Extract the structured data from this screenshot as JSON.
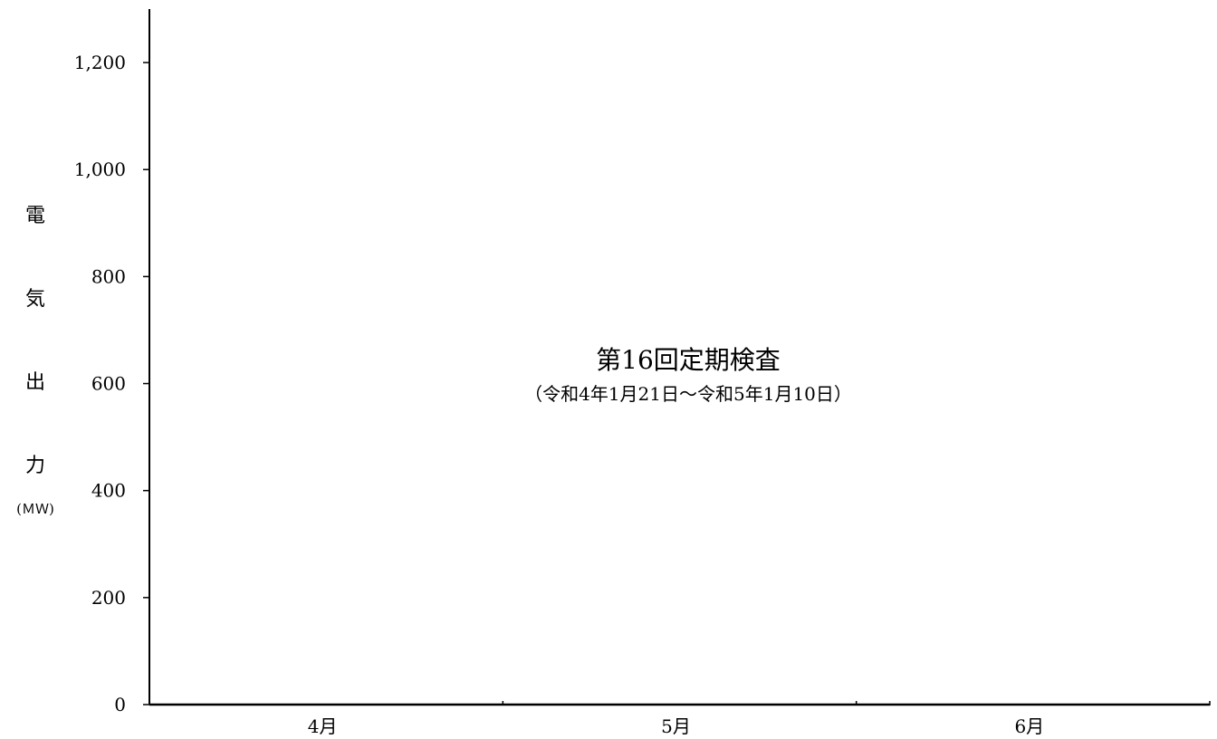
{
  "chart_data": {
    "type": "line",
    "title": "",
    "xlabel": "",
    "ylabel_chars": [
      "電",
      "気",
      "出",
      "力"
    ],
    "ylabel_unit": "(ＭＷ)",
    "categories": [
      "4月",
      "5月",
      "6月"
    ],
    "ylim": [
      0,
      1300
    ],
    "yticks": [
      {
        "value": 0,
        "label": "0"
      },
      {
        "value": 200,
        "label": "200"
      },
      {
        "value": 400,
        "label": "400"
      },
      {
        "value": 600,
        "label": "600"
      },
      {
        "value": 800,
        "label": "800"
      },
      {
        "value": 1000,
        "label": "1,000"
      },
      {
        "value": 1200,
        "label": "1,200"
      }
    ],
    "series": [],
    "grid": false,
    "annotation": {
      "title": "第16回定期検査",
      "subtitle": "（令和4年1月21日～令和5年1月10日）"
    }
  }
}
